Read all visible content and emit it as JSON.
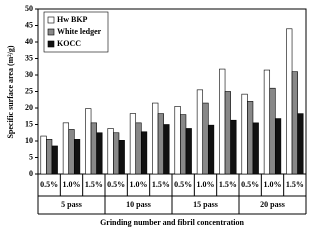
{
  "chart_data": {
    "type": "bar",
    "x_label": "Grinding number and fibril concentration",
    "y_label": "Specific surface area (m²/g)",
    "categories": [
      "0.5%",
      "1.0%",
      "1.5%",
      "0.5%",
      "1.0%",
      "1.5%",
      "0.5%",
      "1.0%",
      "1.5%",
      "0.5%",
      "1.0%",
      "1.5%"
    ],
    "groups": [
      "5 pass",
      "10 pass",
      "15 pass",
      "20 pass"
    ],
    "series": [
      {
        "name": "Hw BKP",
        "color": "#ffffff",
        "values": [
          11.5,
          15.5,
          19.8,
          13.8,
          18.3,
          21.5,
          20.5,
          25.5,
          31.8,
          24.2,
          31.5,
          44.0
        ]
      },
      {
        "name": "White ledger",
        "color": "#888888",
        "values": [
          10.5,
          13.5,
          15.5,
          12.5,
          15.5,
          18.3,
          18.0,
          21.5,
          25.0,
          22.0,
          26.0,
          31.0
        ]
      },
      {
        "name": "KOCC",
        "color": "#111111",
        "values": [
          8.5,
          10.5,
          12.5,
          10.2,
          12.8,
          15.0,
          13.8,
          14.8,
          16.3,
          15.5,
          16.8,
          18.3
        ]
      }
    ],
    "ylim": [
      0,
      50
    ],
    "yticks": [
      0,
      5,
      10,
      15,
      20,
      25,
      30,
      35,
      40,
      45,
      50
    ],
    "grid": false,
    "legend": "upper left"
  }
}
